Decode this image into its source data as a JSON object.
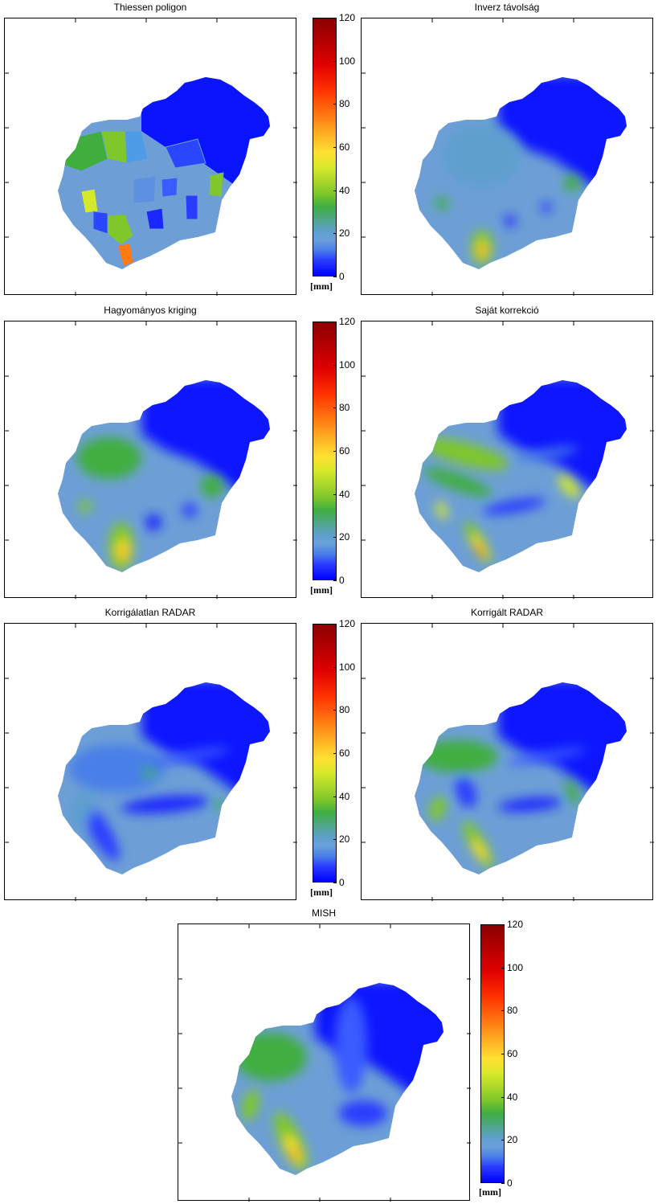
{
  "chart_data": [
    {
      "type": "heatmap",
      "title": "Thiessen poligon",
      "colorbar_ticks": [
        0,
        20,
        40,
        60,
        80,
        100,
        120
      ],
      "colorbar_unit": "[mm]",
      "clim": [
        0,
        120
      ]
    },
    {
      "type": "heatmap",
      "title": "Inverz távolság",
      "clim": [
        0,
        120
      ]
    },
    {
      "type": "heatmap",
      "title": "Hagyományos kriging",
      "colorbar_ticks": [
        0,
        20,
        40,
        60,
        80,
        100,
        120
      ],
      "colorbar_unit": "[mm]",
      "clim": [
        0,
        120
      ]
    },
    {
      "type": "heatmap",
      "title": "Saját korrekció",
      "clim": [
        0,
        120
      ]
    },
    {
      "type": "heatmap",
      "title": "Korrigálatlan RADAR",
      "colorbar_ticks": [
        0,
        20,
        40,
        60,
        80,
        100,
        120
      ],
      "colorbar_unit": "[mm]",
      "clim": [
        0,
        120
      ]
    },
    {
      "type": "heatmap",
      "title": "Korrigált RADAR",
      "clim": [
        0,
        120
      ]
    },
    {
      "type": "heatmap",
      "title": "MISH",
      "colorbar_ticks": [
        0,
        20,
        40,
        60,
        80,
        100,
        120
      ],
      "colorbar_unit": "[mm]",
      "clim": [
        0,
        120
      ]
    }
  ],
  "colors": {
    "low": "#0000ff",
    "mid": "#6aa0d8",
    "green": "#3fae3f",
    "yellow": "#ffe033",
    "red": "#ff3300",
    "max": "#8b0000"
  }
}
